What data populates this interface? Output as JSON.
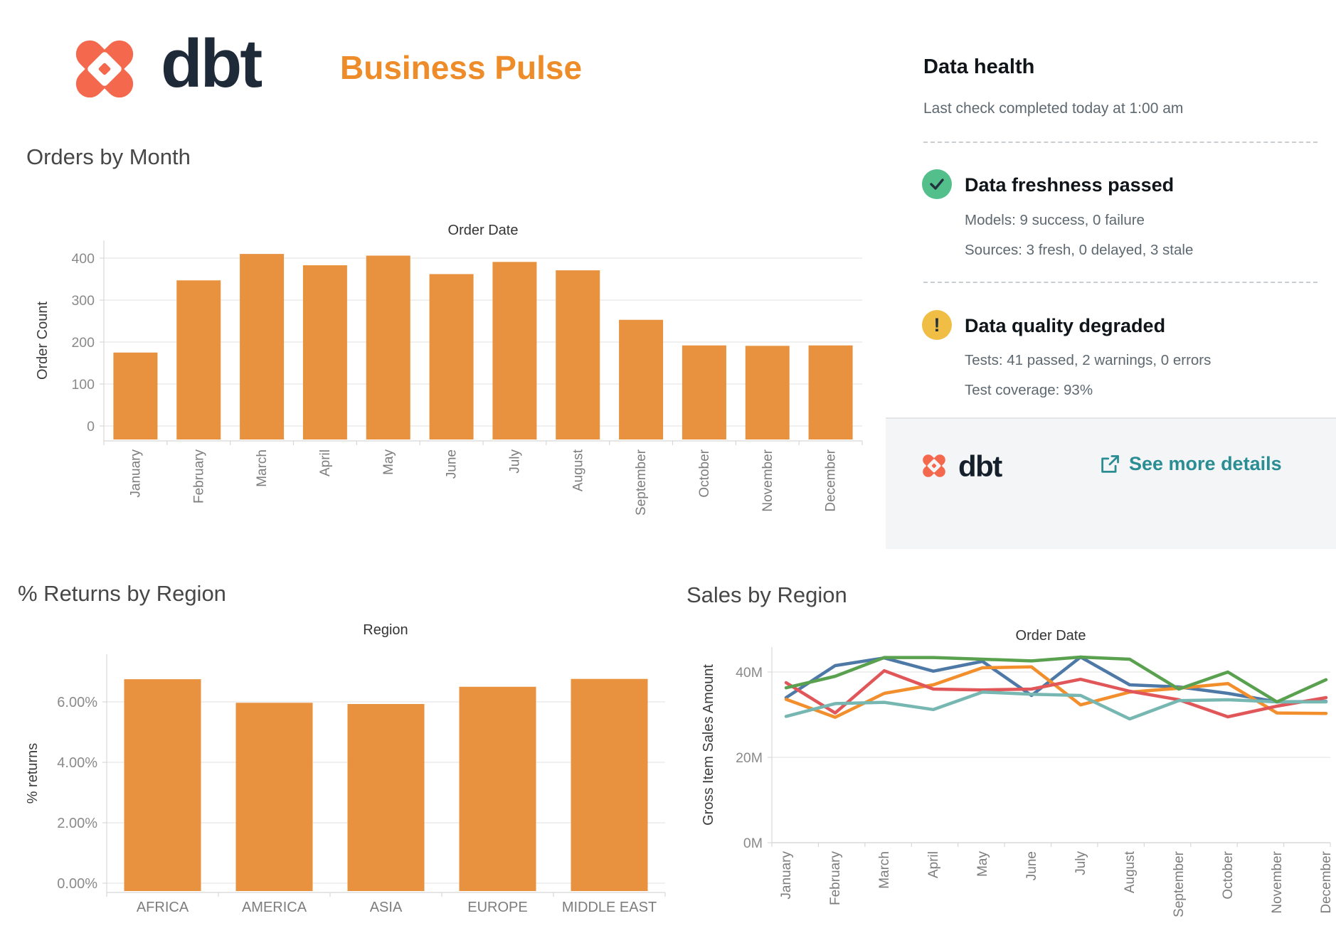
{
  "header": {
    "brand": "dbt",
    "title": "Business Pulse"
  },
  "panel": {
    "title": "Data health",
    "subtitle": "Last check completed today at 1:00 am",
    "freshness_title": "Data freshness passed",
    "freshness_models": "Models: 9 success, 0 failure",
    "freshness_sources": "Sources: 3 fresh, 0 delayed, 3 stale",
    "quality_title": "Data quality degraded",
    "quality_tests": "Tests: 41 passed, 2 warnings, 0 errors",
    "quality_coverage": "Test coverage: 93%",
    "footer_brand": "dbt",
    "footer_link": "See more details"
  },
  "colors": {
    "bar_orange": "#e8923f",
    "brand_coral": "#f4694e",
    "title_orange": "#ed8c28",
    "link_teal": "#2a8d93",
    "badge_green": "#53c08c",
    "badge_yellow": "#f1be45",
    "badge_glyph": "#22313f",
    "gridline": "#ebebeb",
    "axis": "#d8d8d8",
    "tick_text": "#8a8a8a",
    "label_text": "#7d7d7d",
    "axis_title": "#3c3c3c"
  },
  "chart_data": [
    {
      "id": "orders_by_month",
      "type": "bar",
      "section_title": "Orders by Month",
      "title": "Order Date",
      "ylabel": "Order Count",
      "categories": [
        "January",
        "February",
        "March",
        "April",
        "May",
        "June",
        "July",
        "August",
        "September",
        "October",
        "November",
        "December"
      ],
      "values": [
        175,
        347,
        410,
        383,
        406,
        362,
        391,
        371,
        253,
        192,
        191,
        192
      ],
      "yticks": [
        {
          "value": 0,
          "label": "0"
        },
        {
          "value": 100,
          "label": "100"
        },
        {
          "value": 200,
          "label": "200"
        },
        {
          "value": 300,
          "label": "300"
        },
        {
          "value": 400,
          "label": "400"
        }
      ],
      "ylim": [
        0,
        430
      ],
      "grid": true,
      "legend": "none"
    },
    {
      "id": "returns_by_region",
      "type": "bar",
      "section_title": "% Returns by Region",
      "title": "Region",
      "ylabel": "% returns",
      "categories": [
        "AFRICA",
        "AMERICA",
        "ASIA",
        "EUROPE",
        "MIDDLE EAST"
      ],
      "values": [
        6.75,
        5.97,
        5.93,
        6.5,
        6.76
      ],
      "yticks": [
        {
          "value": 0,
          "label": "0.00%"
        },
        {
          "value": 2,
          "label": "2.00%"
        },
        {
          "value": 4,
          "label": "4.00%"
        },
        {
          "value": 6,
          "label": "6.00%"
        }
      ],
      "ylim": [
        0,
        7.6
      ],
      "grid": true,
      "legend": "none"
    },
    {
      "id": "sales_by_region",
      "type": "line",
      "section_title": "Sales by Region",
      "title": "Order Date",
      "ylabel": "Gross Item Sales Amount",
      "categories": [
        "January",
        "February",
        "March",
        "April",
        "May",
        "June",
        "July",
        "August",
        "September",
        "October",
        "November",
        "December"
      ],
      "unit": "M",
      "series": [
        {
          "name": "blue",
          "color": "#4e79a7",
          "values": [
            34.0,
            41.5,
            43.3,
            40.2,
            42.5,
            34.5,
            43.5,
            37.0,
            36.5,
            35.0,
            33.0,
            33.1
          ]
        },
        {
          "name": "orange",
          "color": "#f28e2b",
          "values": [
            33.6,
            29.4,
            35.0,
            37.0,
            41.0,
            41.2,
            32.3,
            35.3,
            36.2,
            37.3,
            30.4,
            30.3
          ]
        },
        {
          "name": "red",
          "color": "#e15759",
          "values": [
            37.5,
            30.4,
            40.3,
            36.0,
            35.8,
            36.0,
            38.3,
            35.5,
            33.5,
            29.5,
            32.0,
            34.0
          ]
        },
        {
          "name": "teal",
          "color": "#76b7b2",
          "values": [
            29.6,
            32.6,
            32.9,
            31.2,
            35.3,
            34.8,
            34.5,
            29.0,
            33.3,
            33.5,
            33.0,
            33.0
          ]
        },
        {
          "name": "green",
          "color": "#59a14f",
          "values": [
            36.3,
            39.0,
            43.4,
            43.4,
            43.0,
            42.6,
            43.5,
            43.0,
            36.0,
            40.0,
            33.0,
            38.2
          ]
        }
      ],
      "yticks": [
        {
          "value": 0,
          "label": "0M"
        },
        {
          "value": 20,
          "label": "20M"
        },
        {
          "value": 40,
          "label": "40M"
        }
      ],
      "ylim": [
        0,
        45.8
      ],
      "grid": true,
      "legend": "none"
    }
  ]
}
